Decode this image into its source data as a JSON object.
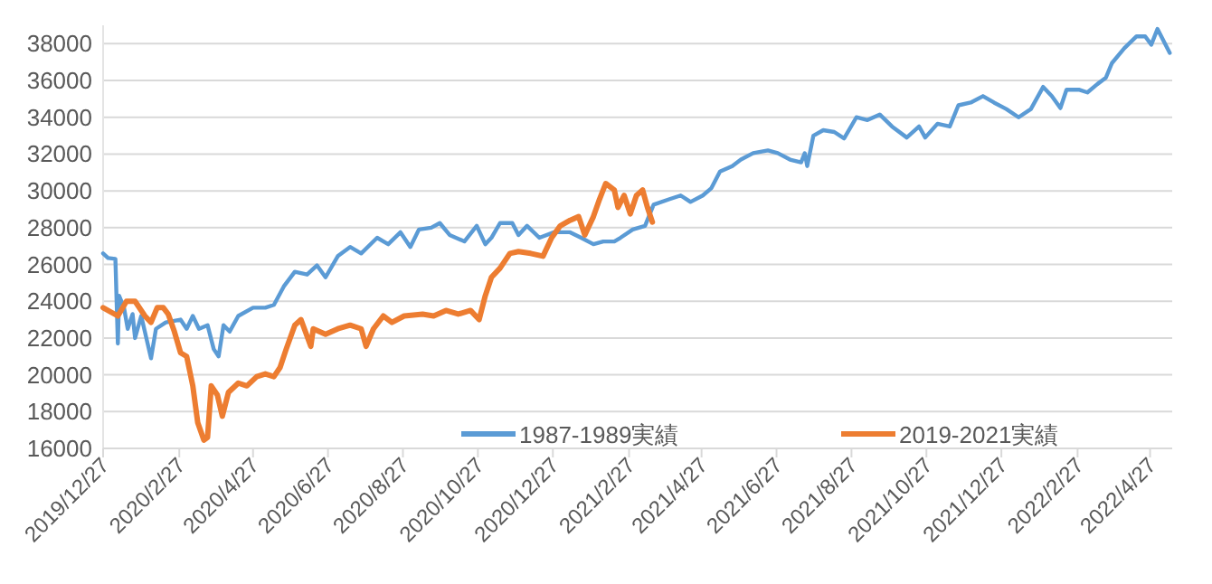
{
  "chart_data": {
    "type": "line",
    "xlim": [
      "2019-12-27",
      "2022-05-15"
    ],
    "ylim": [
      16000,
      39000
    ],
    "yticks": [
      16000,
      18000,
      20000,
      22000,
      24000,
      26000,
      28000,
      30000,
      32000,
      34000,
      36000,
      38000
    ],
    "xticks": [
      {
        "value": "2019-12-27",
        "label": "2019/12/27"
      },
      {
        "value": "2020-02-27",
        "label": "2020/2/27"
      },
      {
        "value": "2020-04-27",
        "label": "2020/4/27"
      },
      {
        "value": "2020-06-27",
        "label": "2020/6/27"
      },
      {
        "value": "2020-08-27",
        "label": "2020/8/27"
      },
      {
        "value": "2020-10-27",
        "label": "2020/10/27"
      },
      {
        "value": "2020-12-27",
        "label": "2020/12/27"
      },
      {
        "value": "2021-02-27",
        "label": "2021/2/27"
      },
      {
        "value": "2021-04-27",
        "label": "2021/4/27"
      },
      {
        "value": "2021-06-27",
        "label": "2021/6/27"
      },
      {
        "value": "2021-08-27",
        "label": "2021/8/27"
      },
      {
        "value": "2021-10-27",
        "label": "2021/10/27"
      },
      {
        "value": "2021-12-27",
        "label": "2021/12/27"
      },
      {
        "value": "2022-02-27",
        "label": "2022/2/27"
      },
      {
        "value": "2022-04-27",
        "label": "2022/4/27"
      }
    ],
    "grid": "y",
    "legend": "bottom",
    "line_style": "solid",
    "series": [
      {
        "name": "1987-1989実績",
        "color": "#5b9bd5",
        "x": [
          "2019-12-27",
          "2019-12-31",
          "2020-01-06",
          "2020-01-08",
          "2020-01-09",
          "2020-01-13",
          "2020-01-16",
          "2020-01-20",
          "2020-01-22",
          "2020-01-27",
          "2020-02-04",
          "2020-02-08",
          "2020-02-16",
          "2020-02-28",
          "2020-03-04",
          "2020-03-09",
          "2020-03-14",
          "2020-03-21",
          "2020-03-26",
          "2020-03-30",
          "2020-04-03",
          "2020-04-08",
          "2020-04-15",
          "2020-04-27",
          "2020-05-07",
          "2020-05-14",
          "2020-05-22",
          "2020-05-31",
          "2020-06-10",
          "2020-06-18",
          "2020-06-25",
          "2020-07-05",
          "2020-07-15",
          "2020-07-24",
          "2020-08-06",
          "2020-08-15",
          "2020-08-25",
          "2020-09-02",
          "2020-09-09",
          "2020-09-19",
          "2020-09-26",
          "2020-10-04",
          "2020-10-16",
          "2020-10-26",
          "2020-11-02",
          "2020-11-07",
          "2020-11-14",
          "2020-11-24",
          "2020-11-29",
          "2020-12-06",
          "2020-12-16",
          "2020-12-28",
          "2021-01-10",
          "2021-01-19",
          "2021-01-29",
          "2021-02-06",
          "2021-02-15",
          "2021-02-20",
          "2021-03-02",
          "2021-03-12",
          "2021-03-19",
          "2021-04-01",
          "2021-04-10",
          "2021-04-18",
          "2021-04-28",
          "2021-05-05",
          "2021-05-12",
          "2021-05-22",
          "2021-05-29",
          "2021-06-08",
          "2021-06-20",
          "2021-06-28",
          "2021-07-08",
          "2021-07-17",
          "2021-07-20",
          "2021-07-22",
          "2021-07-27",
          "2021-08-04",
          "2021-08-13",
          "2021-08-21",
          "2021-08-31",
          "2021-09-09",
          "2021-09-19",
          "2021-09-29",
          "2021-10-11",
          "2021-10-21",
          "2021-10-26",
          "2021-11-05",
          "2021-11-15",
          "2021-11-22",
          "2021-12-02",
          "2021-12-12",
          "2021-12-21",
          "2021-12-31",
          "2022-01-10",
          "2022-01-20",
          "2022-01-30",
          "2022-02-06",
          "2022-02-13",
          "2022-02-18",
          "2022-02-28",
          "2022-03-07",
          "2022-03-15",
          "2022-03-22",
          "2022-03-27",
          "2022-04-06",
          "2022-04-16",
          "2022-04-23",
          "2022-04-28",
          "2022-05-03",
          "2022-05-08",
          "2022-05-13"
        ],
        "values": [
          26600,
          26350,
          26300,
          21700,
          24300,
          23650,
          22500,
          23300,
          22000,
          23200,
          20900,
          22500,
          22850,
          23000,
          22500,
          23200,
          22500,
          22700,
          21400,
          21000,
          22700,
          22350,
          23200,
          23650,
          23650,
          23800,
          24800,
          25600,
          25450,
          25950,
          25300,
          26450,
          26950,
          26600,
          27450,
          27100,
          27750,
          26950,
          27900,
          28000,
          28250,
          27600,
          27250,
          28100,
          27100,
          27450,
          28250,
          28250,
          27600,
          28100,
          27450,
          27750,
          27750,
          27450,
          27100,
          27250,
          27250,
          27450,
          27900,
          28100,
          29250,
          29550,
          29750,
          29400,
          29750,
          30150,
          31050,
          31350,
          31700,
          32050,
          32200,
          32050,
          31700,
          31550,
          32050,
          31350,
          33000,
          33300,
          33200,
          32850,
          34000,
          33850,
          34150,
          33500,
          32900,
          33500,
          32900,
          33650,
          33500,
          34650,
          34800,
          35150,
          34800,
          34450,
          34000,
          34450,
          35650,
          35150,
          34500,
          35500,
          35500,
          35350,
          35800,
          36150,
          36950,
          37750,
          38400,
          38400,
          37950,
          38800,
          38150,
          37500
        ]
      },
      {
        "name": "2019-2021実績",
        "color": "#ed7d31",
        "x": [
          "2019-12-27",
          "2020-01-08",
          "2020-01-15",
          "2020-01-22",
          "2020-01-30",
          "2020-02-04",
          "2020-02-09",
          "2020-02-14",
          "2020-02-18",
          "2020-02-23",
          "2020-02-28",
          "2020-03-04",
          "2020-03-09",
          "2020-03-13",
          "2020-03-18",
          "2020-03-21",
          "2020-03-24",
          "2020-03-29",
          "2020-04-02",
          "2020-04-07",
          "2020-04-15",
          "2020-04-22",
          "2020-04-30",
          "2020-05-07",
          "2020-05-14",
          "2020-05-19",
          "2020-05-24",
          "2020-05-31",
          "2020-06-05",
          "2020-06-13",
          "2020-06-15",
          "2020-06-25",
          "2020-07-05",
          "2020-07-15",
          "2020-07-24",
          "2020-07-28",
          "2020-08-03",
          "2020-08-11",
          "2020-08-18",
          "2020-08-28",
          "2020-09-12",
          "2020-09-21",
          "2020-10-01",
          "2020-10-11",
          "2020-10-21",
          "2020-10-28",
          "2020-11-02",
          "2020-11-07",
          "2020-11-14",
          "2020-11-22",
          "2020-11-29",
          "2020-12-09",
          "2020-12-19",
          "2020-12-26",
          "2021-01-02",
          "2021-01-10",
          "2021-01-17",
          "2021-01-22",
          "2021-01-29",
          "2021-02-03",
          "2021-02-08",
          "2021-02-15",
          "2021-02-18",
          "2021-02-23",
          "2021-02-28",
          "2021-03-05",
          "2021-03-10",
          "2021-03-14",
          "2021-03-18"
        ],
        "values": [
          23650,
          23200,
          24000,
          24000,
          23200,
          22850,
          23650,
          23650,
          23300,
          22350,
          21200,
          21000,
          19400,
          17400,
          16450,
          16600,
          19400,
          18900,
          17750,
          19050,
          19550,
          19400,
          19900,
          20050,
          19900,
          20400,
          21400,
          22700,
          23000,
          21550,
          22500,
          22200,
          22500,
          22700,
          22500,
          21550,
          22500,
          23200,
          22850,
          23200,
          23300,
          23200,
          23500,
          23300,
          23500,
          23000,
          24300,
          25300,
          25800,
          26600,
          26700,
          26600,
          26450,
          27450,
          28100,
          28400,
          28600,
          27600,
          28600,
          29550,
          30400,
          30050,
          29100,
          29750,
          28750,
          29750,
          30050,
          29100,
          28300
        ]
      }
    ]
  }
}
